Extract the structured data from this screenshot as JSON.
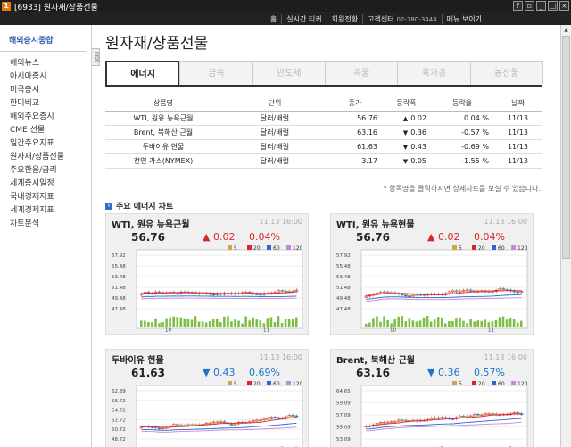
{
  "window": {
    "app_id": "1",
    "title": "[6933] 원자재/상품선물",
    "controls": [
      "?",
      "▫",
      "_",
      "□",
      "×"
    ]
  },
  "topnav": {
    "items": [
      "홈",
      "실시간 티커",
      "회원전환",
      "고객센터",
      "메뉴 보이기"
    ],
    "phone": "02-780-3444"
  },
  "sidebar": {
    "heading": "해외증시종합",
    "items": [
      "해외뉴스",
      "아시아증시",
      "미국증시",
      "한미비교",
      "해외주요증시",
      "CME 선물",
      "일간주요지표",
      "원자재/상품선물",
      "주요환율/금리",
      "세계증시일정",
      "국내경제지표",
      "세계경제지표",
      "차트분석"
    ],
    "hide_label": "HIDE"
  },
  "main": {
    "title": "원자재/상품선물",
    "tabs": [
      "에너지",
      "금속",
      "반도체",
      "곡물",
      "육가공",
      "농산물"
    ],
    "table": {
      "headers": [
        "상품명",
        "단위",
        "종가",
        "등락폭",
        "등락율",
        "날짜"
      ],
      "rows": [
        {
          "name": "WTI, 원유 뉴욕근월",
          "unit": "달러/배럴",
          "close": "56.76",
          "change": "0.02",
          "pct": "0.04 %",
          "date": "11/13",
          "dir": "up"
        },
        {
          "name": "Brent, 북해산 근월",
          "unit": "달러/배럴",
          "close": "63.16",
          "change": "0.36",
          "pct": "-0.57 %",
          "date": "11/13",
          "dir": "down"
        },
        {
          "name": "두바이유 현물",
          "unit": "달러/배럴",
          "close": "61.63",
          "change": "0.43",
          "pct": "-0.69 %",
          "date": "11/13",
          "dir": "down"
        },
        {
          "name": "천연 가스(NYMEX)",
          "unit": "달러/배럴",
          "close": "3.17",
          "change": "0.05",
          "pct": "-1.55 %",
          "date": "11/13",
          "dir": "down"
        }
      ]
    },
    "note": "* 항목명을 클릭하시면 상세차트를 보실 수 있습니다.",
    "section_title": "주요 에너지 차트",
    "cards": [
      {
        "title": "WTI, 원유 뉴욕근월",
        "time": "11.13 16:00",
        "price": "56.76",
        "change": "0.02",
        "pct": "0.04%",
        "dir": "up",
        "yticks": [
          "57.92",
          "55.48",
          "53.48",
          "51.48",
          "49.48",
          "47.48"
        ],
        "xticks": [
          "10",
          "11"
        ]
      },
      {
        "title": "WTI, 원유 뉴욕현물",
        "time": "11.13 16:00",
        "price": "56.76",
        "change": "0.02",
        "pct": "0.04%",
        "dir": "up",
        "yticks": [
          "57.92",
          "55.48",
          "53.48",
          "51.48",
          "49.48",
          "47.48"
        ],
        "xticks": [
          "10",
          "11"
        ]
      },
      {
        "title": "두바이유 현물",
        "time": "11.13 16:00",
        "price": "61.63",
        "change": "0.43",
        "pct": "0.69%",
        "dir": "down",
        "yticks": [
          "62.39",
          "56.72",
          "54.72",
          "52.72",
          "50.72",
          "48.72"
        ],
        "xticks": []
      },
      {
        "title": "Brent, 북해산 근월",
        "time": "11.13 16:00",
        "price": "63.16",
        "change": "0.36",
        "pct": "0.57%",
        "dir": "down",
        "yticks": [
          "64.65",
          "59.09",
          "57.09",
          "55.09",
          "53.09"
        ],
        "xticks": []
      }
    ],
    "legend": [
      "5",
      "20",
      "60",
      "120"
    ],
    "colors": {
      "up": "#d9262d",
      "down": "#1f73c9",
      "ma5": "#d4a44a",
      "ma20": "#d9262d",
      "ma60": "#2f63d6",
      "ma120": "#c38ad6",
      "volume": "#7bc043"
    }
  }
}
